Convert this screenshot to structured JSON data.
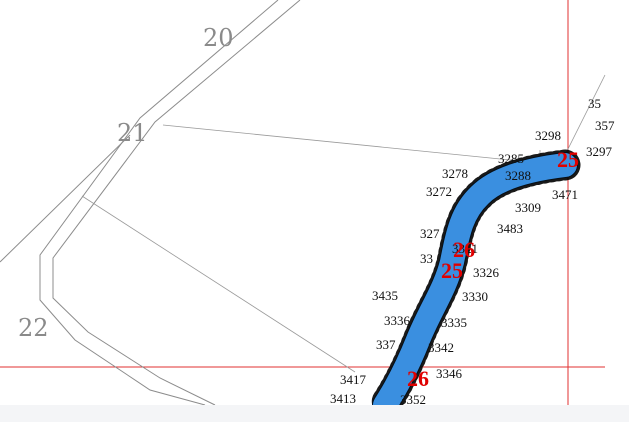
{
  "map": {
    "colors": {
      "background": "#ffffff",
      "sheet_grid": "#e03030",
      "road": "#8c8c8c",
      "parcel_line": "#9a9a9a",
      "river_fill": "#3a8fe0",
      "boundary_dots": "#000000",
      "zone_label": "#e00000"
    },
    "sheet_labels": [
      "20",
      "21",
      "22"
    ],
    "zone_labels": [
      "25",
      "26",
      "25",
      "26"
    ],
    "point_labels": [
      "35",
      "357",
      "3298",
      "3297",
      "3285",
      "3278",
      "3288",
      "3272",
      "3471",
      "3309",
      "3483",
      "327",
      "3321",
      "33",
      "3326",
      "3435",
      "3330",
      "3336",
      "3335",
      "337",
      "3342",
      "3417",
      "3346",
      "3413",
      "3352"
    ]
  }
}
